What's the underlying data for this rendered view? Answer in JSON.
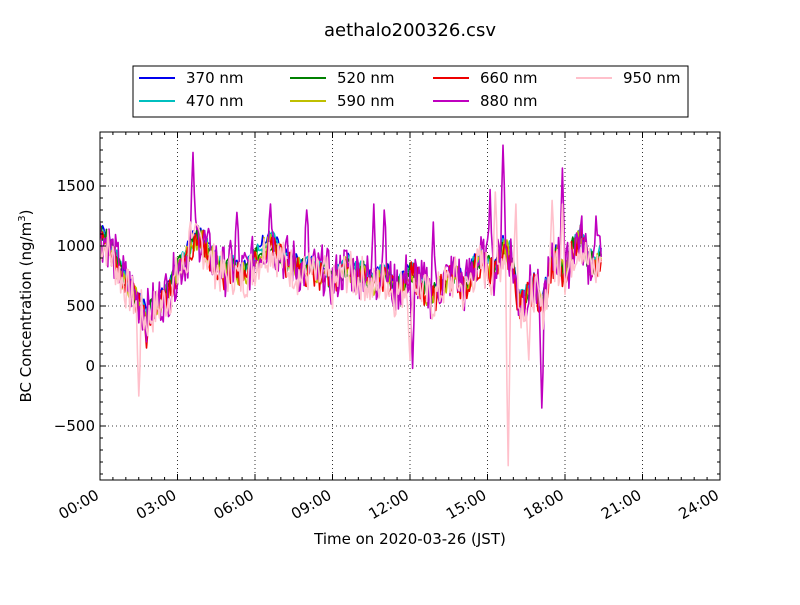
{
  "chart_data": {
    "type": "line",
    "title": "aethalo200326.csv",
    "xlabel": "Time on 2020-03-26 (JST)",
    "ylabel_main": "BC Concentration (ng/m",
    "ylabel_sup": "3",
    "ylabel_close": ")",
    "xlim": [
      0,
      24
    ],
    "ylim": [
      -950,
      1950
    ],
    "x_ticks": [
      0,
      3,
      6,
      9,
      12,
      15,
      18,
      21,
      24
    ],
    "x_tick_labels": [
      "00:00",
      "03:00",
      "06:00",
      "09:00",
      "12:00",
      "15:00",
      "18:00",
      "21:00",
      "24:00"
    ],
    "y_ticks": [
      -500,
      0,
      500,
      1000,
      1500
    ],
    "y_tick_labels": [
      "−500",
      "0",
      "500",
      "1000",
      "1500"
    ],
    "grid": true,
    "legend_position": "top-center",
    "control_hours": [
      0,
      0.3,
      0.6,
      0.9,
      1.2,
      1.5,
      1.8,
      2.1,
      2.4,
      2.7,
      3.0,
      3.3,
      3.6,
      3.9,
      4.2,
      4.5,
      4.8,
      5.1,
      5.4,
      5.7,
      6.0,
      6.3,
      6.6,
      6.9,
      7.2,
      7.5,
      7.8,
      8.1,
      8.4,
      8.7,
      9.0,
      9.3,
      9.6,
      9.9,
      10.2,
      10.5,
      10.8,
      11.1,
      11.4,
      11.7,
      12.0,
      12.3,
      12.6,
      12.9,
      13.2,
      13.5,
      13.8,
      14.1,
      14.4,
      14.7,
      15.0,
      15.3,
      15.6,
      15.9,
      16.2,
      16.5,
      16.8,
      17.1,
      17.4,
      17.7,
      18.0,
      18.3,
      18.6,
      18.9,
      19.2,
      19.4
    ],
    "control_values": [
      1100,
      1050,
      900,
      750,
      650,
      550,
      430,
      520,
      580,
      650,
      820,
      900,
      1050,
      1100,
      950,
      880,
      800,
      850,
      780,
      820,
      900,
      1000,
      1050,
      980,
      900,
      870,
      800,
      850,
      780,
      820,
      700,
      800,
      850,
      780,
      800,
      700,
      750,
      780,
      650,
      700,
      800,
      750,
      650,
      600,
      700,
      750,
      800,
      650,
      820,
      900,
      850,
      800,
      1000,
      950,
      550,
      600,
      700,
      500,
      800,
      950,
      750,
      1000,
      1100,
      900,
      850,
      950
    ],
    "series": [
      {
        "name": "370 nm",
        "color": "#0000ee",
        "amp": 50,
        "offset": 40,
        "seed": 1,
        "spikes": []
      },
      {
        "name": "470 nm",
        "color": "#00bfbf",
        "amp": 75,
        "offset": 15,
        "seed": 2,
        "spikes": []
      },
      {
        "name": "520 nm",
        "color": "#008000",
        "amp": 95,
        "offset": -10,
        "seed": 3,
        "spikes": []
      },
      {
        "name": "590 nm",
        "color": "#bfbf00",
        "amp": 110,
        "offset": -30,
        "seed": 4,
        "spikes": []
      },
      {
        "name": "660 nm",
        "color": "#ee0000",
        "amp": 125,
        "offset": -45,
        "seed": 5,
        "spikes": [
          [
            1.8,
            150
          ]
        ]
      },
      {
        "name": "880 nm",
        "color": "#bf00bf",
        "amp": 220,
        "offset": -10,
        "seed": 6,
        "spikes": [
          [
            3.6,
            1780
          ],
          [
            5.3,
            1280
          ],
          [
            6.6,
            1350
          ],
          [
            8.0,
            1300
          ],
          [
            10.6,
            1350
          ],
          [
            11.0,
            1300
          ],
          [
            12.1,
            -20
          ],
          [
            12.9,
            1200
          ],
          [
            15.1,
            1470
          ],
          [
            15.6,
            1840
          ],
          [
            17.1,
            -350
          ],
          [
            17.9,
            1650
          ],
          [
            19.2,
            1250
          ]
        ]
      },
      {
        "name": "950 nm",
        "color": "#ffc0cb",
        "amp": 190,
        "offset": -60,
        "seed": 7,
        "spikes": [
          [
            1.5,
            -250
          ],
          [
            3.5,
            1200
          ],
          [
            12.0,
            50
          ],
          [
            15.3,
            1450
          ],
          [
            15.8,
            -830
          ],
          [
            16.1,
            1350
          ],
          [
            16.6,
            50
          ],
          [
            17.5,
            1380
          ],
          [
            17.9,
            1350
          ]
        ]
      }
    ]
  }
}
